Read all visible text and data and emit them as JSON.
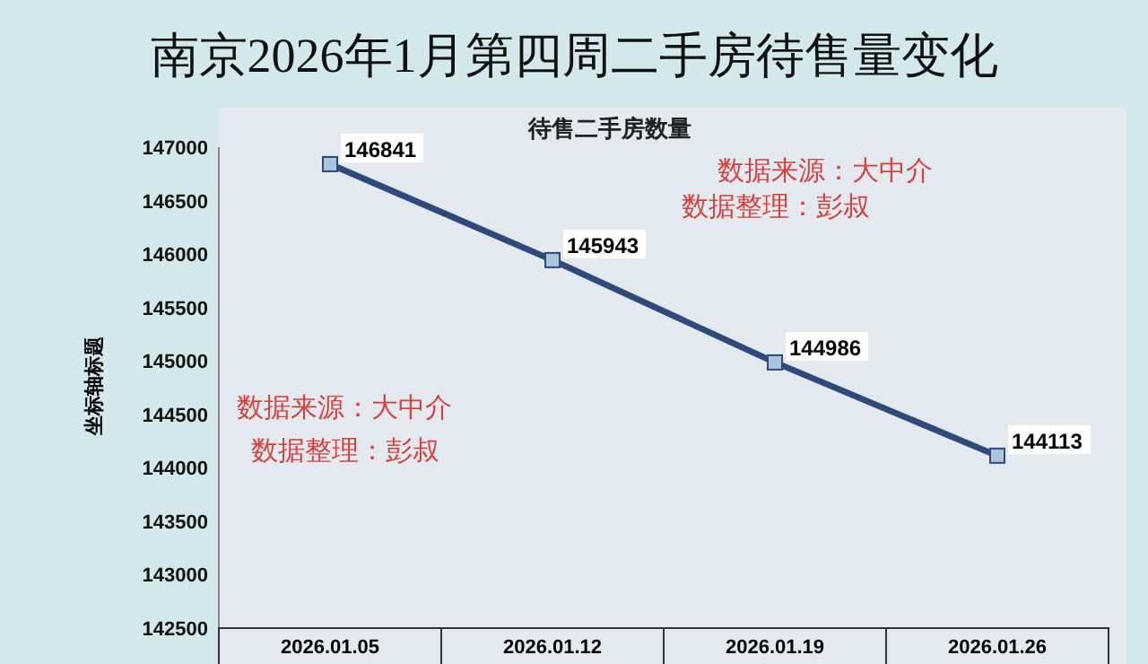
{
  "chart_data": {
    "type": "line",
    "title": "南京2026年1月第四周二手房待售量变化",
    "subtitle": "待售二手房数量",
    "ylabel": "坐标轴标题",
    "categories": [
      "2026.01.05",
      "2026.01.12",
      "2026.01.19",
      "2026.01.26"
    ],
    "series": [
      {
        "color": "#2e4a7a",
        "values": [
          146841,
          145943,
          144986,
          144113
        ]
      }
    ],
    "ylim": [
      142500,
      147000
    ],
    "yticks": [
      142500,
      143000,
      143500,
      144000,
      144500,
      145000,
      145500,
      146000,
      146500,
      147000
    ],
    "data_labels": true,
    "marker": "square",
    "line_style": "solid",
    "annotations": [
      "数据来源：大中介",
      "数据整理：彭叔",
      "数据来源：大中介",
      "数据整理：彭叔"
    ]
  }
}
